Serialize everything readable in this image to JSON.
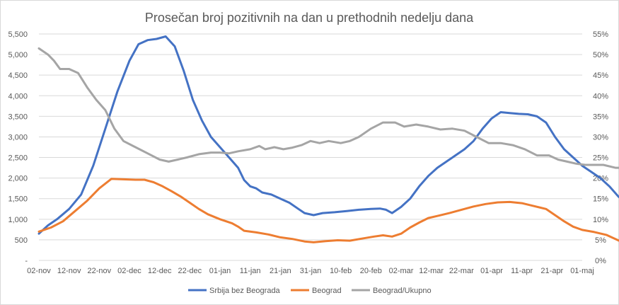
{
  "chart_data": {
    "type": "line",
    "title": "Prosečan broj pozitivnih na dan u prethodnih nedelju dana",
    "x_labels": [
      "02-nov",
      "12-nov",
      "22-nov",
      "02-dec",
      "12-dec",
      "22-dec",
      "01-jan",
      "11-jan",
      "21-jan",
      "31-jan",
      "10-feb",
      "20-feb",
      "02-mar",
      "12-mar",
      "22-mar",
      "01-apr",
      "11-apr",
      "21-apr",
      "01-maj"
    ],
    "y_left_ticks": [
      "-",
      "500",
      "1,000",
      "1,500",
      "2,000",
      "2,500",
      "3,000",
      "3,500",
      "4,000",
      "4,500",
      "5,000",
      "5,500"
    ],
    "y_right_ticks": [
      "0%",
      "5%",
      "10%",
      "15%",
      "20%",
      "25%",
      "30%",
      "35%",
      "40%",
      "45%",
      "50%",
      "55%"
    ],
    "y_left_range": [
      0,
      5500
    ],
    "y_right_range": [
      0,
      0.55
    ],
    "grid": true,
    "legend_position": "bottom",
    "series": [
      {
        "name": "Srbija bez Beograda",
        "axis": "left",
        "color": "#4472C4",
        "points": [
          [
            0,
            650
          ],
          [
            3,
            850
          ],
          [
            6,
            1000
          ],
          [
            10,
            1250
          ],
          [
            14,
            1600
          ],
          [
            18,
            2300
          ],
          [
            22,
            3200
          ],
          [
            26,
            4100
          ],
          [
            30,
            4850
          ],
          [
            33,
            5250
          ],
          [
            36,
            5350
          ],
          [
            39,
            5380
          ],
          [
            42,
            5440
          ],
          [
            45,
            5200
          ],
          [
            48,
            4600
          ],
          [
            51,
            3900
          ],
          [
            54,
            3400
          ],
          [
            57,
            3000
          ],
          [
            60,
            2750
          ],
          [
            63,
            2500
          ],
          [
            66,
            2250
          ],
          [
            68,
            1950
          ],
          [
            70,
            1800
          ],
          [
            72,
            1750
          ],
          [
            74,
            1650
          ],
          [
            77,
            1600
          ],
          [
            80,
            1500
          ],
          [
            83,
            1400
          ],
          [
            86,
            1250
          ],
          [
            88,
            1150
          ],
          [
            91,
            1100
          ],
          [
            94,
            1150
          ],
          [
            98,
            1170
          ],
          [
            102,
            1200
          ],
          [
            106,
            1230
          ],
          [
            110,
            1250
          ],
          [
            113,
            1260
          ],
          [
            115,
            1230
          ],
          [
            117,
            1150
          ],
          [
            120,
            1300
          ],
          [
            123,
            1500
          ],
          [
            126,
            1800
          ],
          [
            129,
            2050
          ],
          [
            132,
            2250
          ],
          [
            135,
            2400
          ],
          [
            138,
            2550
          ],
          [
            141,
            2700
          ],
          [
            144,
            2900
          ],
          [
            147,
            3200
          ],
          [
            150,
            3450
          ],
          [
            153,
            3600
          ],
          [
            156,
            3580
          ],
          [
            159,
            3560
          ],
          [
            162,
            3550
          ],
          [
            165,
            3500
          ],
          [
            168,
            3350
          ],
          [
            171,
            3000
          ],
          [
            174,
            2700
          ],
          [
            177,
            2500
          ],
          [
            180,
            2300
          ],
          [
            183,
            2150
          ],
          [
            186,
            2000
          ],
          [
            189,
            1800
          ],
          [
            192,
            1550
          ],
          [
            194,
            1430
          ]
        ]
      },
      {
        "name": "Beograd",
        "axis": "left",
        "color": "#ED7D31",
        "points": [
          [
            0,
            700
          ],
          [
            4,
            800
          ],
          [
            8,
            950
          ],
          [
            12,
            1200
          ],
          [
            16,
            1450
          ],
          [
            20,
            1750
          ],
          [
            24,
            1980
          ],
          [
            28,
            1970
          ],
          [
            32,
            1960
          ],
          [
            35,
            1960
          ],
          [
            38,
            1900
          ],
          [
            41,
            1800
          ],
          [
            44,
            1680
          ],
          [
            47,
            1550
          ],
          [
            50,
            1400
          ],
          [
            53,
            1250
          ],
          [
            56,
            1120
          ],
          [
            60,
            1000
          ],
          [
            64,
            900
          ],
          [
            66,
            820
          ],
          [
            68,
            720
          ],
          [
            72,
            680
          ],
          [
            76,
            630
          ],
          [
            80,
            560
          ],
          [
            84,
            520
          ],
          [
            88,
            460
          ],
          [
            91,
            440
          ],
          [
            95,
            470
          ],
          [
            99,
            490
          ],
          [
            103,
            480
          ],
          [
            107,
            530
          ],
          [
            111,
            580
          ],
          [
            114,
            610
          ],
          [
            117,
            580
          ],
          [
            120,
            650
          ],
          [
            123,
            800
          ],
          [
            126,
            920
          ],
          [
            129,
            1030
          ],
          [
            132,
            1080
          ],
          [
            136,
            1150
          ],
          [
            140,
            1230
          ],
          [
            144,
            1310
          ],
          [
            148,
            1370
          ],
          [
            152,
            1410
          ],
          [
            156,
            1420
          ],
          [
            160,
            1390
          ],
          [
            164,
            1320
          ],
          [
            168,
            1250
          ],
          [
            171,
            1100
          ],
          [
            174,
            950
          ],
          [
            177,
            820
          ],
          [
            180,
            740
          ],
          [
            184,
            690
          ],
          [
            188,
            620
          ],
          [
            191,
            520
          ],
          [
            194,
            420
          ]
        ]
      },
      {
        "name": "Beograd/Ukupno",
        "axis": "right",
        "color": "#A5A5A5",
        "points": [
          [
            0,
            0.515
          ],
          [
            3,
            0.5
          ],
          [
            5,
            0.485
          ],
          [
            7,
            0.465
          ],
          [
            10,
            0.465
          ],
          [
            13,
            0.455
          ],
          [
            16,
            0.42
          ],
          [
            19,
            0.39
          ],
          [
            22,
            0.365
          ],
          [
            25,
            0.32
          ],
          [
            28,
            0.29
          ],
          [
            32,
            0.275
          ],
          [
            36,
            0.26
          ],
          [
            40,
            0.245
          ],
          [
            43,
            0.24
          ],
          [
            46,
            0.245
          ],
          [
            49,
            0.25
          ],
          [
            53,
            0.258
          ],
          [
            57,
            0.262
          ],
          [
            60,
            0.262
          ],
          [
            63,
            0.26
          ],
          [
            66,
            0.265
          ],
          [
            70,
            0.27
          ],
          [
            73,
            0.278
          ],
          [
            75,
            0.27
          ],
          [
            78,
            0.275
          ],
          [
            81,
            0.27
          ],
          [
            84,
            0.274
          ],
          [
            87,
            0.28
          ],
          [
            90,
            0.29
          ],
          [
            93,
            0.285
          ],
          [
            96,
            0.29
          ],
          [
            100,
            0.285
          ],
          [
            103,
            0.29
          ],
          [
            106,
            0.3
          ],
          [
            110,
            0.32
          ],
          [
            114,
            0.335
          ],
          [
            118,
            0.335
          ],
          [
            121,
            0.325
          ],
          [
            125,
            0.33
          ],
          [
            129,
            0.325
          ],
          [
            133,
            0.318
          ],
          [
            137,
            0.32
          ],
          [
            141,
            0.315
          ],
          [
            145,
            0.3
          ],
          [
            149,
            0.285
          ],
          [
            153,
            0.285
          ],
          [
            157,
            0.28
          ],
          [
            161,
            0.27
          ],
          [
            165,
            0.255
          ],
          [
            169,
            0.255
          ],
          [
            172,
            0.245
          ],
          [
            175,
            0.24
          ],
          [
            178,
            0.235
          ],
          [
            181,
            0.232
          ],
          [
            184,
            0.232
          ],
          [
            187,
            0.232
          ],
          [
            191,
            0.225
          ],
          [
            194,
            0.225
          ]
        ]
      }
    ]
  }
}
